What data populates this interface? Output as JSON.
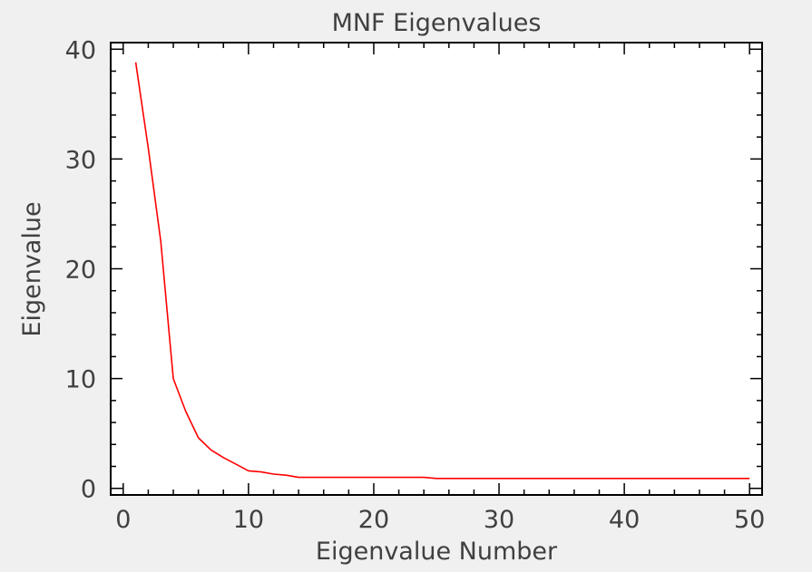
{
  "chart_data": {
    "type": "line",
    "title": "MNF Eigenvalues",
    "xlabel": "Eigenvalue Number",
    "ylabel": "Eigenvalue",
    "xlim": [
      -1,
      51
    ],
    "ylim": [
      -0.6,
      40.6
    ],
    "xticks": [
      0,
      10,
      20,
      30,
      40,
      50
    ],
    "yticks": [
      0,
      10,
      20,
      30,
      40
    ],
    "grid": false,
    "series": [
      {
        "color": "#ff0000",
        "x": [
          1,
          2,
          3,
          4,
          5,
          6,
          7,
          8,
          9,
          10,
          11,
          12,
          13,
          14,
          15,
          16,
          17,
          18,
          19,
          20,
          21,
          22,
          23,
          24,
          25,
          26,
          27,
          28,
          29,
          30,
          31,
          32,
          33,
          34,
          35,
          36,
          37,
          38,
          39,
          40,
          41,
          42,
          43,
          44,
          45,
          46,
          47,
          48,
          49,
          50
        ],
        "y": [
          38.8,
          31.0,
          22.5,
          10.0,
          7.0,
          4.6,
          3.5,
          2.8,
          2.2,
          1.6,
          1.5,
          1.3,
          1.2,
          1.0,
          1.0,
          1.0,
          1.0,
          1.0,
          1.0,
          1.0,
          1.0,
          1.0,
          1.0,
          1.0,
          0.9,
          0.9,
          0.9,
          0.9,
          0.9,
          0.9,
          0.9,
          0.9,
          0.9,
          0.9,
          0.9,
          0.9,
          0.9,
          0.9,
          0.9,
          0.9,
          0.9,
          0.9,
          0.9,
          0.9,
          0.9,
          0.9,
          0.9,
          0.9,
          0.9,
          0.9
        ]
      }
    ]
  }
}
